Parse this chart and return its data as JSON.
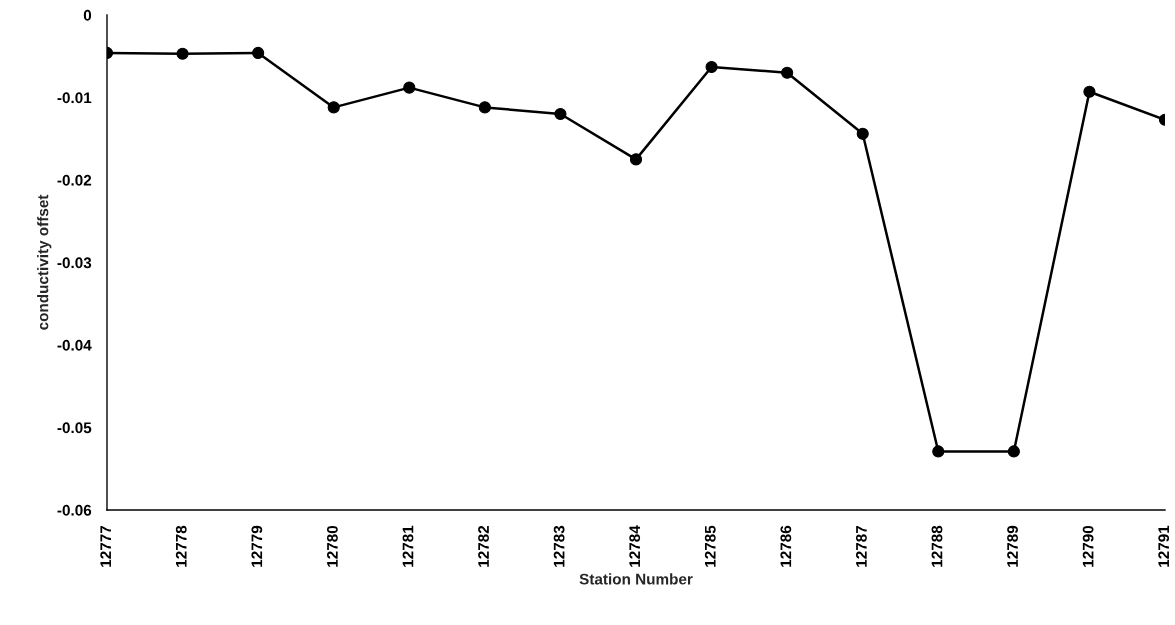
{
  "chart_data": {
    "type": "line",
    "xlabel": "Station Number",
    "ylabel": "conductivity offset",
    "categories": [
      "12777",
      "12778",
      "12779",
      "12780",
      "12781",
      "12782",
      "12783",
      "12784",
      "12785",
      "12786",
      "12787",
      "12788",
      "12789",
      "12790",
      "12791"
    ],
    "series": [
      {
        "color": "#000000",
        "values": [
          -0.0046,
          -0.0047,
          -0.0046,
          -0.0112,
          -0.0088,
          -0.0112,
          -0.012,
          -0.0175,
          -0.0063,
          -0.007,
          -0.0144,
          -0.0529,
          -0.0529,
          -0.0093,
          -0.0127
        ]
      }
    ],
    "ylim": [
      -0.06,
      0
    ],
    "yticks": [
      {
        "value": -0.06,
        "label": "-0.06"
      },
      {
        "value": -0.05,
        "label": "-0.05"
      },
      {
        "value": -0.04,
        "label": "-0.04"
      },
      {
        "value": -0.03,
        "label": "-0.03"
      },
      {
        "value": -0.02,
        "label": "-0.02"
      },
      {
        "value": -0.01,
        "label": "-0.01"
      },
      0
    ],
    "marker": "circle",
    "line_style": "solid",
    "grid": false,
    "legend": false
  }
}
